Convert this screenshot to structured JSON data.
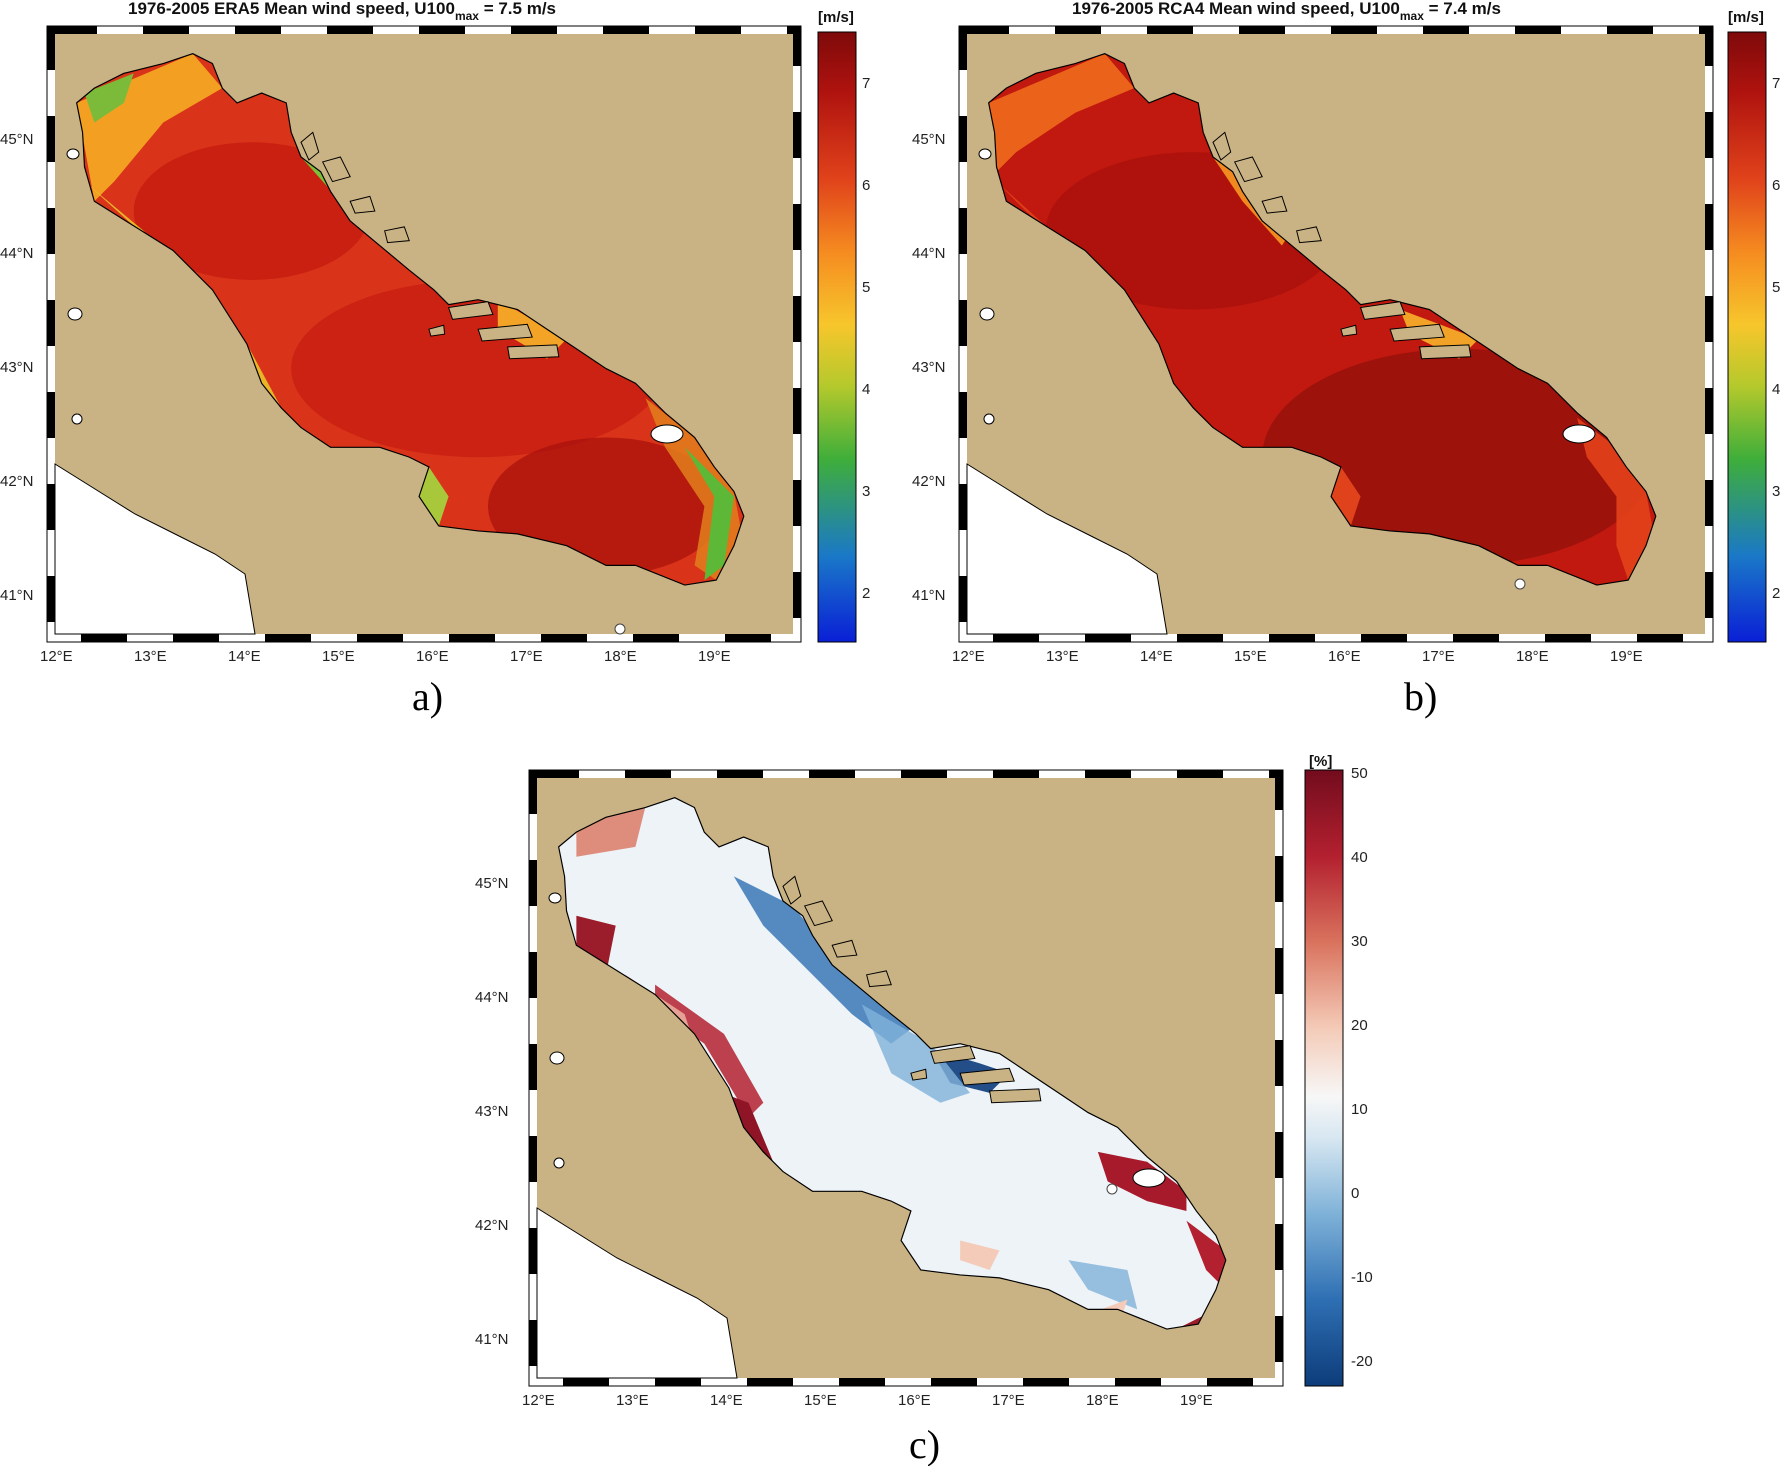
{
  "panels": {
    "a": {
      "title_main": "1976-2005 ERA5   Mean wind speed, U100",
      "title_sub": "max",
      "title_tail": " = 7.5 m/s",
      "label": "a)",
      "colorbar_unit": "[m/s]",
      "colorbar_ticks": [
        "7",
        "6",
        "5",
        "4",
        "3",
        "2"
      ]
    },
    "b": {
      "title_main": "1976-2005 RCA4   Mean wind speed, U100",
      "title_sub": "max",
      "title_tail": " = 7.4 m/s",
      "label": "b)",
      "colorbar_unit": "[m/s]",
      "colorbar_ticks": [
        "7",
        "6",
        "5",
        "4",
        "3",
        "2"
      ]
    },
    "c": {
      "label": "c)",
      "colorbar_unit": "[%]",
      "colorbar_ticks": [
        "50",
        "40",
        "30",
        "20",
        "10",
        "0",
        "-10",
        "-20"
      ]
    }
  },
  "axes": {
    "lon_ticks": [
      "12°E",
      "13°E",
      "14°E",
      "15°E",
      "16°E",
      "17°E",
      "18°E",
      "19°E"
    ],
    "lat_ticks": [
      "45°N",
      "44°N",
      "43°N",
      "42°N",
      "41°N"
    ]
  },
  "colors": {
    "land": "#c9b283",
    "sea_outside": "#ffffff",
    "coast": "#000000",
    "speed_colormap": [
      "#0a1fd6",
      "#1a78c8",
      "#3fae3a",
      "#b5c92c",
      "#f7c62c",
      "#f58b20",
      "#e0421b",
      "#b0130f",
      "#7e0a0a"
    ],
    "diff_colormap": [
      "#0d3c7a",
      "#2e6fb3",
      "#7fb2d8",
      "#d6e6f1",
      "#f7f7f7",
      "#f4cbb8",
      "#d9735e",
      "#b3202f",
      "#720c1e"
    ]
  }
}
